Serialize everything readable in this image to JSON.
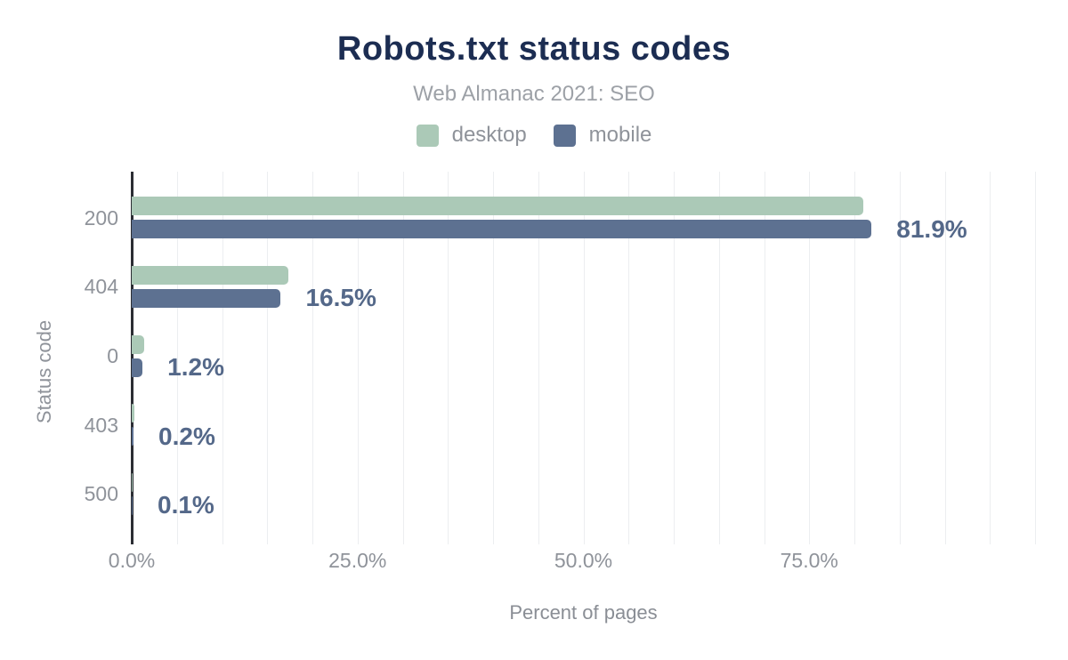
{
  "chart_data": {
    "type": "bar",
    "orientation": "horizontal",
    "title": "Robots.txt status codes",
    "subtitle": "Web Almanac 2021: SEO",
    "categories": [
      "200",
      "404",
      "0",
      "403",
      "500"
    ],
    "series": [
      {
        "name": "desktop",
        "color": "#abc9b7",
        "values": [
          81.0,
          17.3,
          1.4,
          0.3,
          0.1
        ]
      },
      {
        "name": "mobile",
        "color": "#5d7191",
        "values": [
          81.9,
          16.5,
          1.2,
          0.2,
          0.1
        ]
      }
    ],
    "data_labels": [
      "81.9%",
      "16.5%",
      "1.2%",
      "0.2%",
      "0.1%"
    ],
    "xlabel": "Percent of pages",
    "ylabel": "Status code",
    "x_ticks": [
      {
        "label": "0.0%",
        "value": 0
      },
      {
        "label": "25.0%",
        "value": 25
      },
      {
        "label": "50.0%",
        "value": 50
      },
      {
        "label": "75.0%",
        "value": 75
      }
    ],
    "xlim": [
      0,
      100
    ],
    "gridline_step": 5,
    "legend_position": "top",
    "grid": true,
    "title_color": "#1c2d52",
    "data_label_color": "#546889"
  }
}
